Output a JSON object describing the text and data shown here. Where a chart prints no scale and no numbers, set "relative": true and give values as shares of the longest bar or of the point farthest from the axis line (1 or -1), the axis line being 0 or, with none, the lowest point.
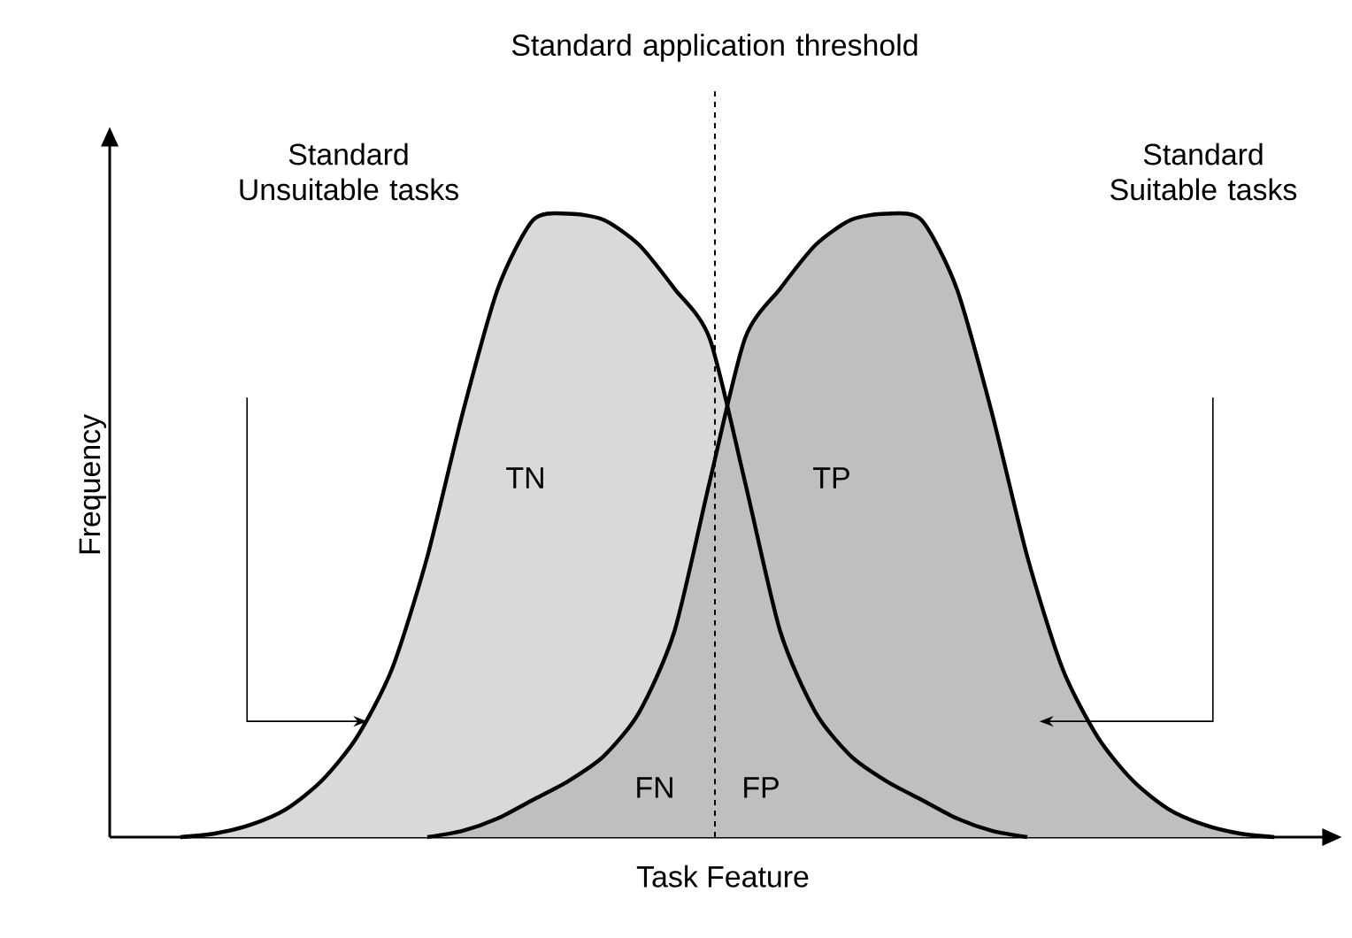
{
  "chart_data": {
    "type": "area",
    "relative": true,
    "stacked": false,
    "xlabel": "Task Feature",
    "ylabel": "Frequency",
    "categories": [
      null,
      null,
      null,
      null,
      null,
      null,
      null,
      null,
      null,
      null,
      null,
      null,
      null,
      null,
      null,
      null,
      null,
      null,
      null,
      null,
      null,
      null,
      null,
      null,
      null,
      null,
      null,
      null,
      null,
      null,
      null,
      null,
      null,
      null,
      null
    ],
    "series": [
      {
        "color": "#d9d9d9",
        "values": [
          null,
          null,
          0,
          0.006,
          0.02,
          0.045,
          0.09,
          0.16,
          0.27,
          0.45,
          0.68,
          0.88,
          0.99,
          1.0,
          0.99,
          0.95,
          0.88,
          0.8,
          0.57,
          0.33,
          0.2,
          0.13,
          0.09,
          0.06,
          0.03,
          0.01,
          0,
          null,
          null,
          null,
          null,
          null,
          null,
          null,
          null
        ]
      },
      {
        "color": "#bfbfbf",
        "values": [
          null,
          null,
          null,
          null,
          null,
          null,
          null,
          null,
          null,
          0,
          0.01,
          0.03,
          0.06,
          0.09,
          0.13,
          0.2,
          0.33,
          0.57,
          0.8,
          0.88,
          0.95,
          0.99,
          1.0,
          0.99,
          0.88,
          0.68,
          0.45,
          0.27,
          0.16,
          0.09,
          0.045,
          0.02,
          0.006,
          0,
          null
        ]
      }
    ],
    "annotations": [
      "Standard Unsuitable tasks",
      "Standard Suitable tasks",
      "TN",
      "TP",
      "FN",
      "FP",
      "Standard application threshold"
    ]
  }
}
